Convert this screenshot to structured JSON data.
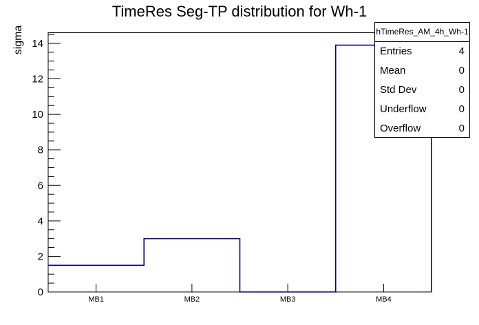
{
  "title": "TimeRes Seg-TP distribution for Wh-1",
  "stats": {
    "header": "hTimeRes_AM_4h_Wh-1",
    "rows": [
      {
        "label": "Entries",
        "value": "4"
      },
      {
        "label": "Mean",
        "value": "0"
      },
      {
        "label": "Std Dev",
        "value": "0"
      },
      {
        "label": "Underflow",
        "value": "0"
      },
      {
        "label": "Overflow",
        "value": "0"
      }
    ]
  },
  "chart_data": {
    "type": "bar",
    "style": "root-step-histogram",
    "title": "TimeRes Seg-TP distribution for Wh-1",
    "xlabel": "",
    "ylabel": "sigma",
    "categories": [
      "MB1",
      "MB2",
      "MB3",
      "MB4"
    ],
    "values": [
      1.5,
      3.0,
      0.0,
      13.9
    ],
    "ylim": [
      0,
      14.6
    ],
    "ytick_step": 2,
    "yminor_step": 0.5,
    "grid": false,
    "legend": false,
    "line_color": "#000099"
  },
  "colors": {
    "background": "#ffffff",
    "frame": "#000000",
    "text": "#000000",
    "hist_line": "#000099"
  }
}
